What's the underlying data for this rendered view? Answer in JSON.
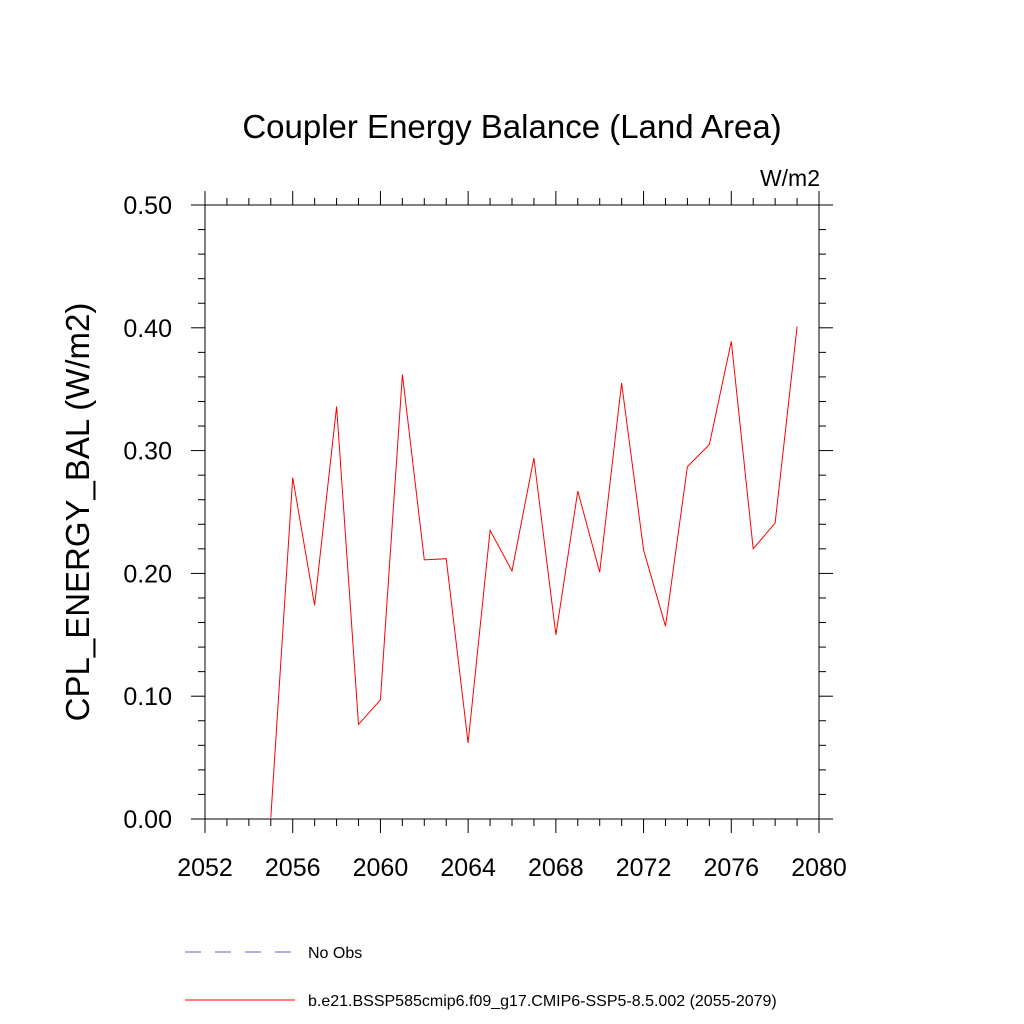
{
  "chart_data": {
    "type": "line",
    "title": "Coupler Energy Balance (Land Area)",
    "units_label": "W/m2",
    "ylabel": "CPL_ENERGY_BAL  (W/m2)",
    "xlabel": "",
    "xlim": [
      2052,
      2080
    ],
    "ylim": [
      0.0,
      0.5
    ],
    "x_ticks": [
      2052,
      2056,
      2060,
      2064,
      2068,
      2072,
      2076,
      2080
    ],
    "x_tick_labels": [
      "2052",
      "2056",
      "2060",
      "2064",
      "2068",
      "2072",
      "2076",
      "2080"
    ],
    "y_ticks": [
      0.0,
      0.1,
      0.2,
      0.3,
      0.4,
      0.5
    ],
    "y_tick_labels": [
      "0.00",
      "0.10",
      "0.20",
      "0.30",
      "0.40",
      "0.50"
    ],
    "grid": false,
    "legend_position": "bottom",
    "legend": [
      {
        "label": "No Obs",
        "color": "#6a5acd",
        "style": "dashed"
      },
      {
        "label": "b.e21.BSSP585cmip6.f09_g17.CMIP6-SSP5-8.5.002 (2055-2079)",
        "color": "#ff0000",
        "style": "solid"
      }
    ],
    "series": [
      {
        "color": "#ff0000",
        "x": [
          2055,
          2056,
          2057,
          2058,
          2059,
          2060,
          2061,
          2062,
          2063,
          2064,
          2065,
          2066,
          2067,
          2068,
          2069,
          2070,
          2071,
          2072,
          2073,
          2074,
          2075,
          2076,
          2077,
          2078,
          2079
        ],
        "y": [
          0.001,
          0.278,
          0.174,
          0.336,
          0.077,
          0.097,
          0.362,
          0.211,
          0.212,
          0.062,
          0.235,
          0.202,
          0.294,
          0.15,
          0.267,
          0.201,
          0.355,
          0.219,
          0.157,
          0.287,
          0.305,
          0.389,
          0.22,
          0.241,
          0.401
        ]
      }
    ]
  }
}
